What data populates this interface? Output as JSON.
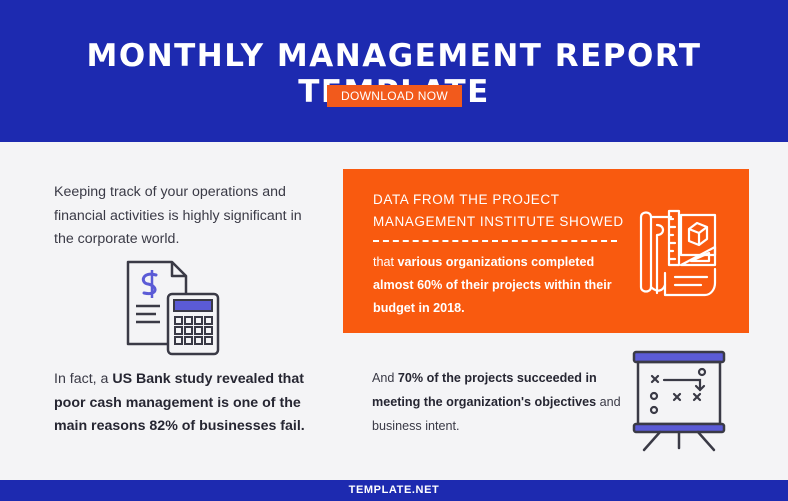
{
  "header": {
    "title": "MONTHLY MANAGEMENT REPORT TEMPLATE",
    "download_label": "DOWNLOAD NOW"
  },
  "left": {
    "intro": "Keeping track of your operations and financial activities is highly significant in the corporate world.",
    "fact_prefix": "In fact, a ",
    "fact_bold": "US Bank study revealed that poor cash management is one of the main reasons 82% of businesses fail."
  },
  "orange_card": {
    "heading": "DATA FROM THE PROJECT MANAGEMENT INSTITUTE SHOWED",
    "body_prefix": "that ",
    "body_bold": "various organizations completed almost 60% of their projects within their budget in 2018."
  },
  "right": {
    "prefix": "And ",
    "bold": "70% of the projects succeeded in meeting the organization's objectives",
    "suffix": " and business intent."
  },
  "footer": {
    "brand": "TEMPLATE.NET"
  },
  "icons": {
    "calculator": "document-calculator-icon",
    "blueprint": "blueprint-tools-icon",
    "board": "strategy-board-icon"
  },
  "colors": {
    "header_bg": "#1d2ab0",
    "accent": "#f25a1c",
    "card_bg": "#f95a0f",
    "icon_accent": "#5b5bd6"
  }
}
